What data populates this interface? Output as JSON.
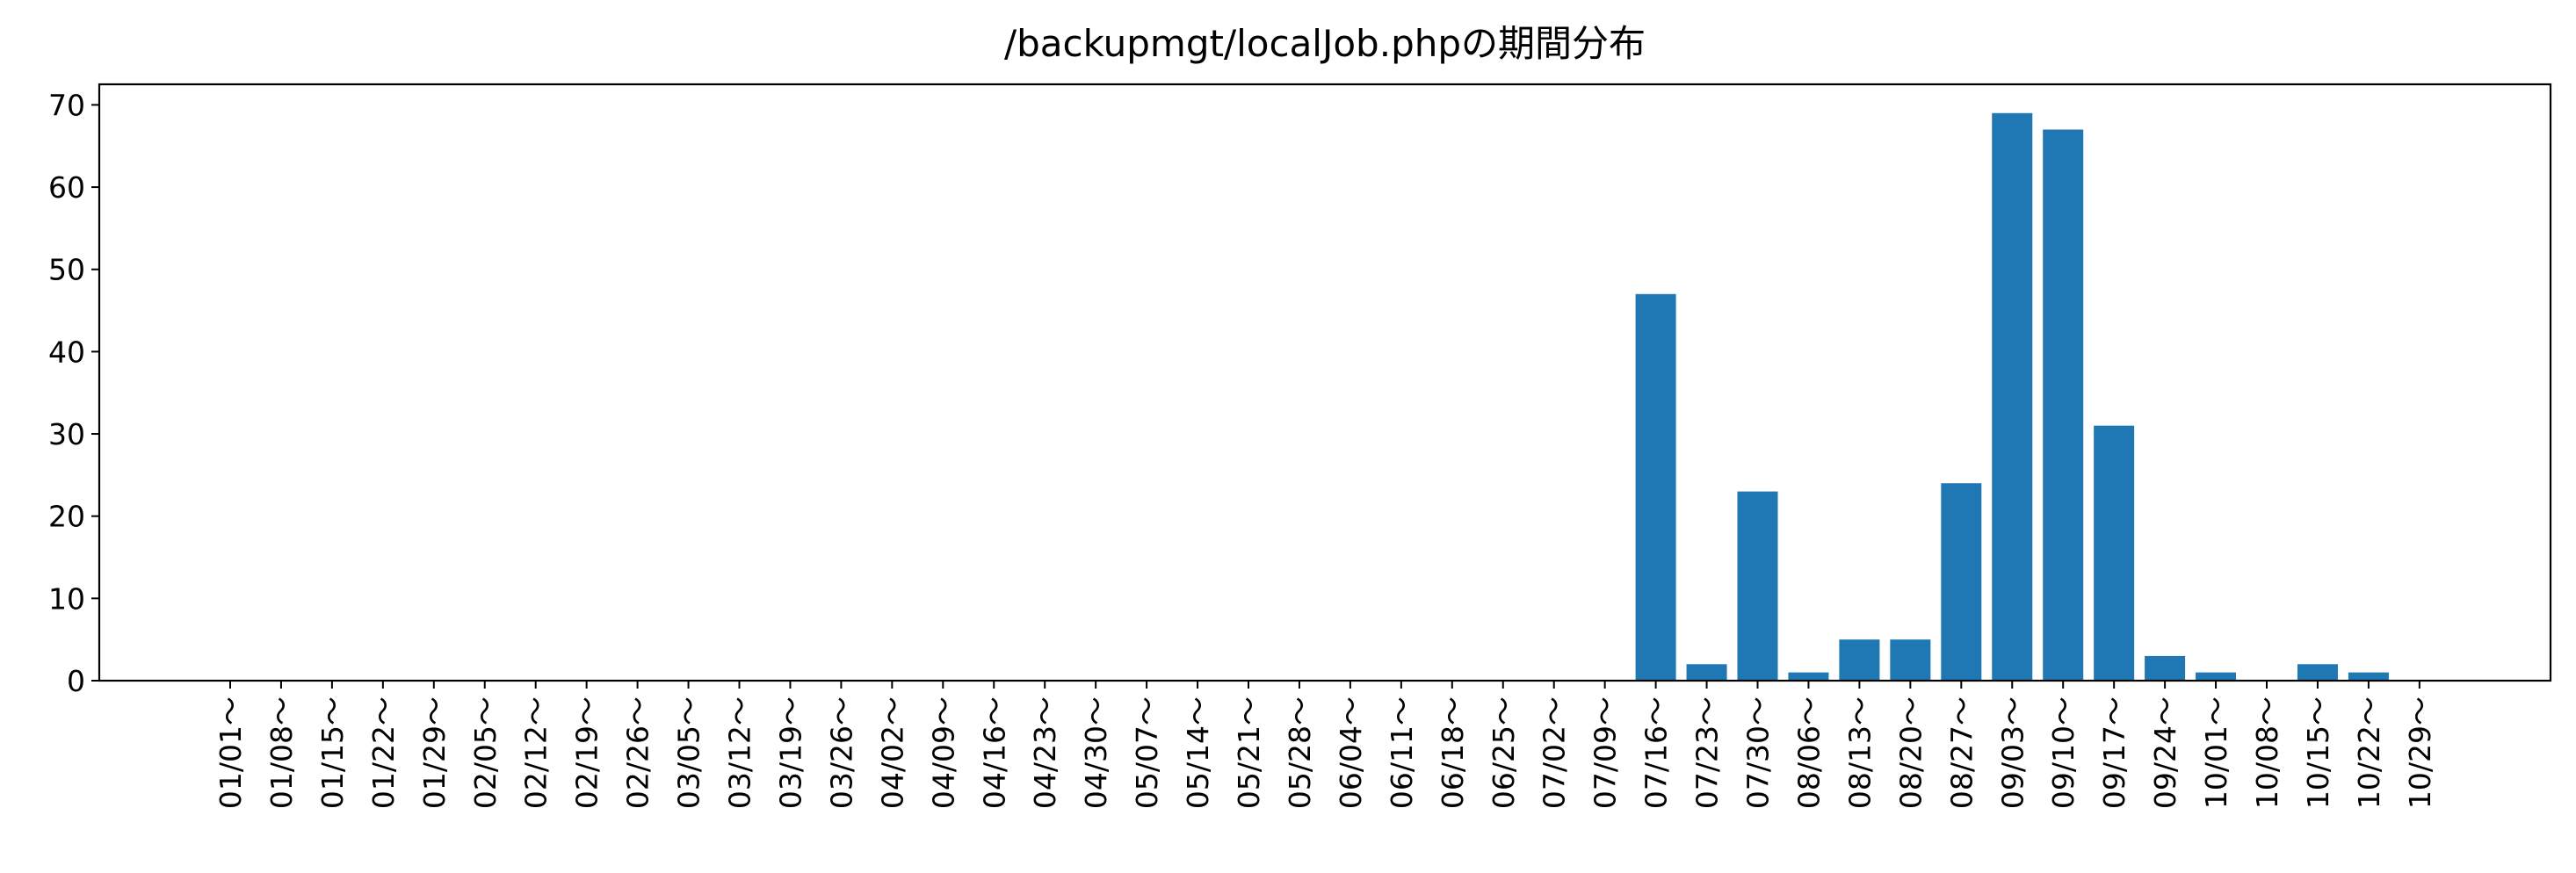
{
  "chart_data": {
    "type": "bar",
    "title": "/backupmgt/localJob.phpの期間分布",
    "xlabel": "",
    "ylabel": "",
    "categories": [
      "01/01～",
      "01/08～",
      "01/15～",
      "01/22～",
      "01/29～",
      "02/05～",
      "02/12～",
      "02/19～",
      "02/26～",
      "03/05～",
      "03/12～",
      "03/19～",
      "03/26～",
      "04/02～",
      "04/09～",
      "04/16～",
      "04/23～",
      "04/30～",
      "05/07～",
      "05/14～",
      "05/21～",
      "05/28～",
      "06/04～",
      "06/11～",
      "06/18～",
      "06/25～",
      "07/02～",
      "07/09～",
      "07/16～",
      "07/23～",
      "07/30～",
      "08/06～",
      "08/13～",
      "08/20～",
      "08/27～",
      "09/03～",
      "09/10～",
      "09/17～",
      "09/24～",
      "10/01～",
      "10/08～",
      "10/15～",
      "10/22～",
      "10/29～"
    ],
    "values": [
      0,
      0,
      0,
      0,
      0,
      0,
      0,
      0,
      0,
      0,
      0,
      0,
      0,
      0,
      0,
      0,
      0,
      0,
      0,
      0,
      0,
      0,
      0,
      0,
      0,
      0,
      0,
      0,
      47,
      2,
      23,
      1,
      5,
      5,
      24,
      69,
      67,
      31,
      3,
      1,
      0,
      2,
      1,
      0
    ],
    "yticks": [
      0,
      10,
      20,
      30,
      40,
      50,
      60,
      70
    ],
    "ylim": [
      0,
      72.5
    ],
    "grid": false,
    "bar_color": "#1f77b4"
  }
}
